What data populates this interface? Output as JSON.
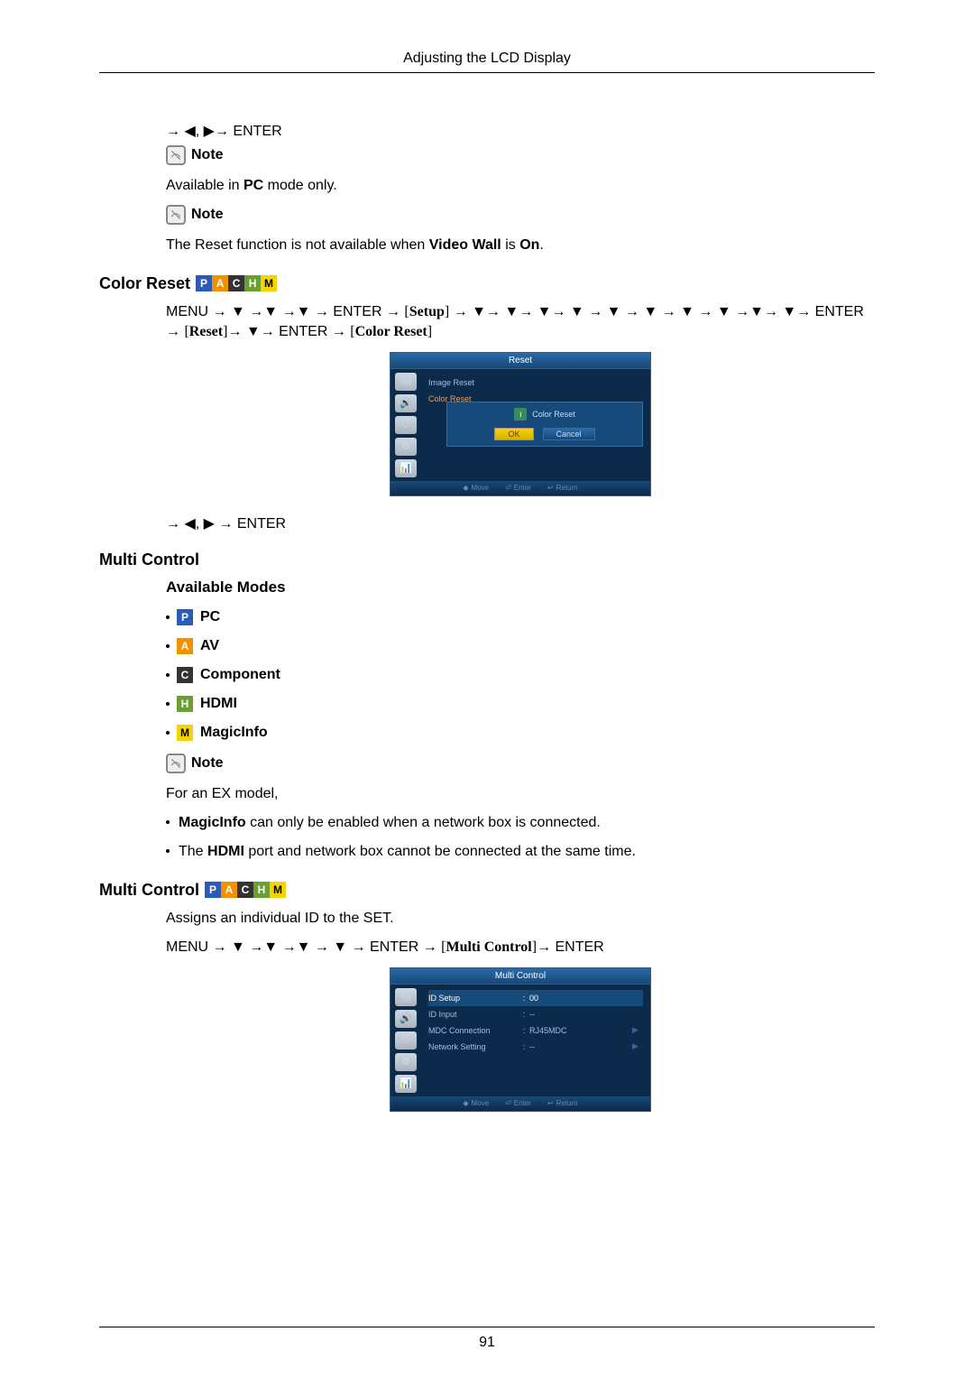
{
  "header": {
    "title": "Adjusting the LCD Display"
  },
  "footer": {
    "page": "91"
  },
  "block1": {
    "nav": "→ ◀, ▶→ ENTER",
    "note_label": "Note",
    "text1_pre": "Available in ",
    "text1_bold": "PC",
    "text1_post": " mode only.",
    "note_label2": "Note",
    "text2_pre": "The Reset function is not available when ",
    "text2_bold": "Video Wall",
    "text2_mid": " is ",
    "text2_bold2": "On",
    "text2_post": "."
  },
  "color_reset": {
    "title": "Color Reset",
    "badges": [
      "P",
      "A",
      "C",
      "H",
      "M"
    ],
    "menu_path": "MENU → ▼ →▼ →▼ → ENTER → [Setup] → ▼→ ▼→ ▼→ ▼ → ▼ → ▼ → ▼ → ▼ →▼→ ▼→ ENTER → [Reset]→ ▼→ ENTER → [Color Reset]",
    "nav2": "→ ◀, ▶ → ENTER"
  },
  "osd1": {
    "title": "Reset",
    "items": [
      "Image Reset",
      "Color Reset"
    ],
    "dialog_title": "Color Reset",
    "ok": "OK",
    "cancel": "Cancel",
    "foot": {
      "move": "Move",
      "enter": "Enter",
      "return": "Return"
    },
    "colors": {
      "frame": "#0c2a4a",
      "bar": "#164a7a",
      "accent": "#f5d400"
    }
  },
  "multi_control": {
    "title": "Multi Control",
    "subtitle": "Available Modes",
    "modes": [
      {
        "badge": "P",
        "cls": "b-p",
        "label": "PC"
      },
      {
        "badge": "A",
        "cls": "b-a",
        "label": "AV"
      },
      {
        "badge": "C",
        "cls": "b-c",
        "label": "Component"
      },
      {
        "badge": "H",
        "cls": "b-h",
        "label": "HDMI"
      },
      {
        "badge": "M",
        "cls": "b-m",
        "label": "MagicInfo"
      }
    ],
    "note_label": "Note",
    "note_intro": "For an EX model,",
    "notes": [
      {
        "bold": "MagicInfo",
        "text": " can only be enabled when a network box is connected."
      },
      {
        "pre": "The ",
        "bold": "HDMI",
        "text": " port and network box cannot be connected at the same time."
      }
    ]
  },
  "multi_control2": {
    "title": "Multi Control",
    "badges": [
      "P",
      "A",
      "C",
      "H",
      "M"
    ],
    "desc": "Assigns an individual ID to the SET.",
    "menu_path": "MENU → ▼ →▼ →▼ → ▼ → ENTER → [Multi Control]→ ENTER"
  },
  "osd2": {
    "title": "Multi Control",
    "rows": [
      {
        "label": "ID Setup",
        "val": "00",
        "sel": true,
        "arr": false
      },
      {
        "label": "ID Input",
        "val": "--",
        "sel": false,
        "arr": false
      },
      {
        "label": "MDC Connection",
        "val": "RJ45MDC",
        "sel": false,
        "arr": true
      },
      {
        "label": "Network Setting",
        "val": "--",
        "sel": false,
        "arr": true
      }
    ],
    "foot": {
      "move": "Move",
      "enter": "Enter",
      "return": "Return"
    }
  }
}
